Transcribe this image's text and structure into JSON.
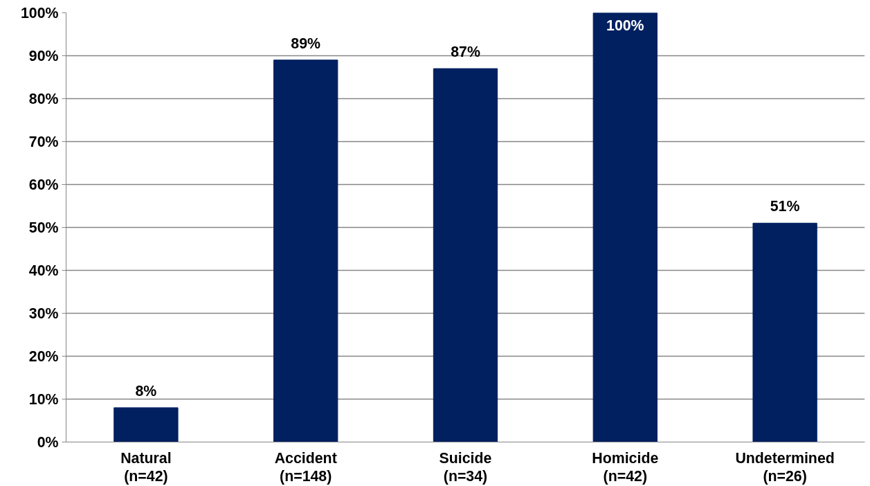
{
  "chart_data": {
    "type": "bar",
    "categories": [
      "Natural\n(n=42)",
      "Accident\n(n=148)",
      "Suicide\n(n=34)",
      "Homicide\n(n=42)",
      "Undetermined\n(n=26)"
    ],
    "values": [
      8,
      89,
      87,
      100,
      51
    ],
    "value_labels": [
      "8%",
      "89%",
      "87%",
      "100%",
      "51%"
    ],
    "color": "#002060",
    "ylim": [
      0,
      100
    ],
    "yticks": [
      {
        "value": 0,
        "label": "0%"
      },
      {
        "value": 10,
        "label": "10%"
      },
      {
        "value": 20,
        "label": "20%"
      },
      {
        "value": 30,
        "label": "30%"
      },
      {
        "value": 40,
        "label": "40%"
      },
      {
        "value": 50,
        "label": "50%"
      },
      {
        "value": 60,
        "label": "60%"
      },
      {
        "value": 70,
        "label": "70%"
      },
      {
        "value": 80,
        "label": "80%"
      },
      {
        "value": 90,
        "label": "90%"
      },
      {
        "value": 100,
        "label": "100%"
      }
    ],
    "grid": "y"
  }
}
